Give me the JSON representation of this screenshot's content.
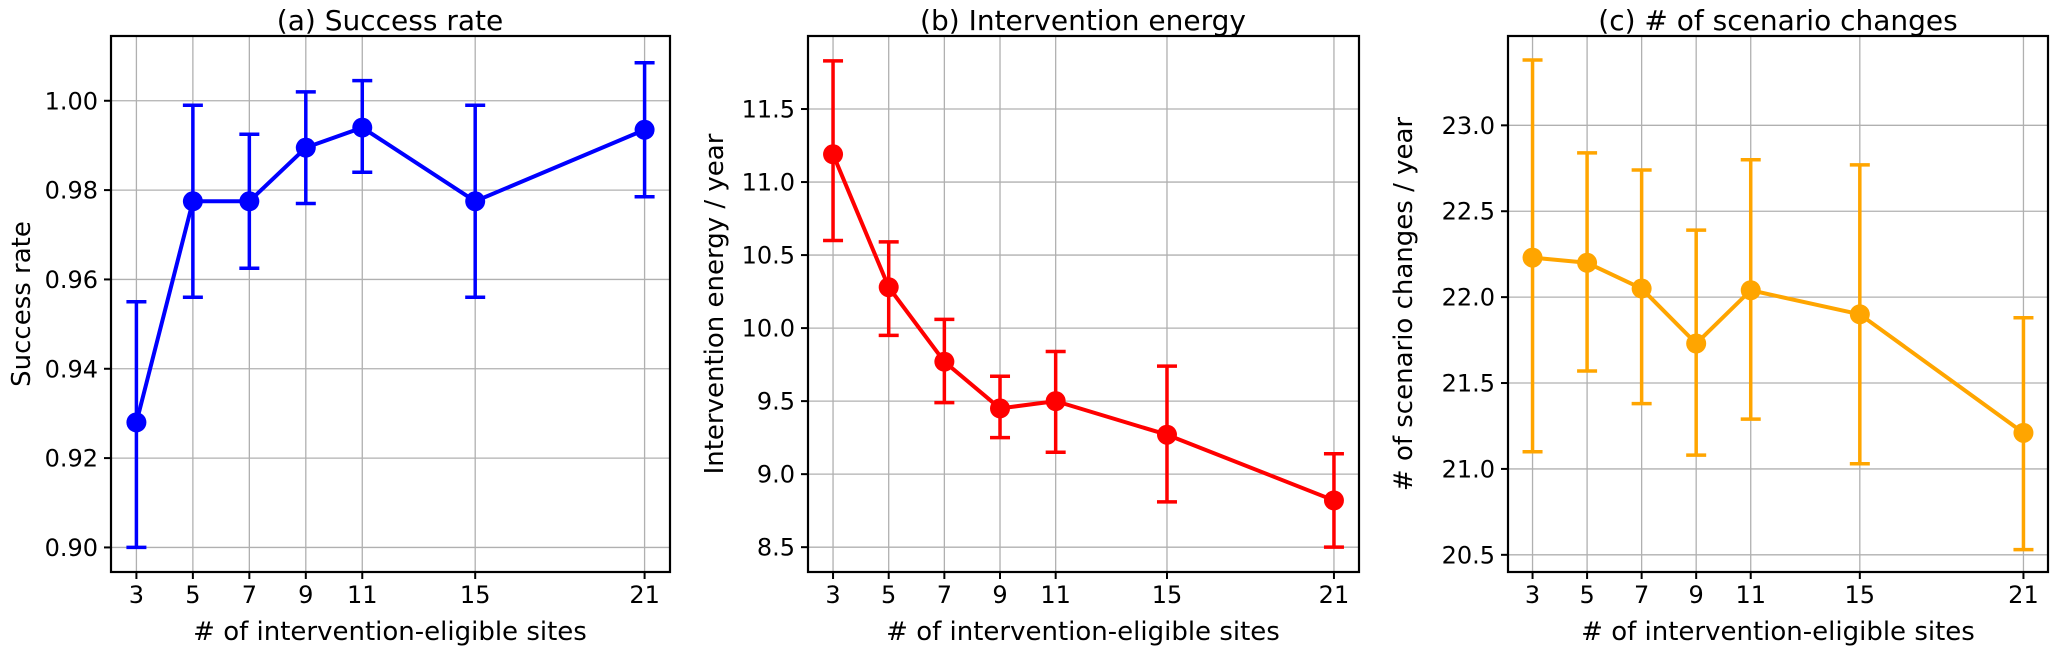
{
  "figure": {
    "background": "#ffffff",
    "grid_color": "#b0b0b0",
    "axis_color": "#000000",
    "text_color": "#000000"
  },
  "chart_data": [
    {
      "type": "line",
      "panel_label": "a",
      "title": "(a) Success rate",
      "xlabel": "# of intervention-eligible sites",
      "ylabel": "Success rate",
      "color": "#0000ff",
      "marker": "circle",
      "grid": true,
      "legend_position": "none",
      "error_bars": true,
      "x": [
        3,
        5,
        7,
        9,
        11,
        15,
        21
      ],
      "xtick_labels": [
        "3",
        "5",
        "7",
        "9",
        "11",
        "15",
        "21"
      ],
      "xlim": [
        2.1,
        21.9
      ],
      "ylim": [
        0.8945,
        1.0145
      ],
      "yticks": [
        0.9,
        0.92,
        0.94,
        0.96,
        0.98,
        1.0
      ],
      "ytick_labels": [
        "0.90",
        "0.92",
        "0.94",
        "0.96",
        "0.98",
        "1.00"
      ],
      "series": [
        {
          "name": "Success rate",
          "values": [
            0.928,
            0.9775,
            0.9775,
            0.9895,
            0.994,
            0.9775,
            0.9935
          ],
          "err_low": [
            0.9,
            0.956,
            0.9625,
            0.977,
            0.984,
            0.956,
            0.9785
          ],
          "err_high": [
            0.955,
            0.999,
            0.9925,
            1.002,
            1.0045,
            0.999,
            1.0085
          ]
        }
      ]
    },
    {
      "type": "line",
      "panel_label": "b",
      "title": "(b) Intervention energy",
      "xlabel": "# of intervention-eligible sites",
      "ylabel": "Intervention energy / year",
      "color": "#ff0000",
      "marker": "circle",
      "grid": true,
      "legend_position": "none",
      "error_bars": true,
      "x": [
        3,
        5,
        7,
        9,
        11,
        15,
        21
      ],
      "xtick_labels": [
        "3",
        "5",
        "7",
        "9",
        "11",
        "15",
        "21"
      ],
      "xlim": [
        2.1,
        21.9
      ],
      "ylim": [
        8.33,
        12.0
      ],
      "yticks": [
        8.5,
        9.0,
        9.5,
        10.0,
        10.5,
        11.0,
        11.5
      ],
      "ytick_labels": [
        "8.5",
        "9.0",
        "9.5",
        "10.0",
        "10.5",
        "11.0",
        "11.5"
      ],
      "series": [
        {
          "name": "Intervention energy / year",
          "values": [
            11.19,
            10.28,
            9.77,
            9.45,
            9.5,
            9.27,
            8.82
          ],
          "err_low": [
            10.6,
            9.95,
            9.49,
            9.25,
            9.15,
            8.81,
            8.5
          ],
          "err_high": [
            11.83,
            10.59,
            10.06,
            9.67,
            9.84,
            9.74,
            9.14
          ]
        }
      ]
    },
    {
      "type": "line",
      "panel_label": "c",
      "title": "(c) # of scenario changes",
      "xlabel": "# of intervention-eligible sites",
      "ylabel": "# of scenario changes / year",
      "color": "#ffa500",
      "marker": "circle",
      "grid": true,
      "legend_position": "none",
      "error_bars": true,
      "x": [
        3,
        5,
        7,
        9,
        11,
        15,
        21
      ],
      "xtick_labels": [
        "3",
        "5",
        "7",
        "9",
        "11",
        "15",
        "21"
      ],
      "xlim": [
        2.1,
        21.9
      ],
      "ylim": [
        20.4,
        23.52
      ],
      "yticks": [
        20.5,
        21.0,
        21.5,
        22.0,
        22.5,
        23.0
      ],
      "ytick_labels": [
        "20.5",
        "21.0",
        "21.5",
        "22.0",
        "22.5",
        "23.0"
      ],
      "series": [
        {
          "name": "# of scenario changes / year",
          "values": [
            22.23,
            22.2,
            22.05,
            21.73,
            22.04,
            21.9,
            21.21
          ],
          "err_low": [
            21.1,
            21.57,
            21.38,
            21.08,
            21.29,
            21.03,
            20.53
          ],
          "err_high": [
            23.38,
            22.84,
            22.74,
            22.39,
            22.8,
            22.77,
            21.88
          ]
        }
      ]
    }
  ]
}
